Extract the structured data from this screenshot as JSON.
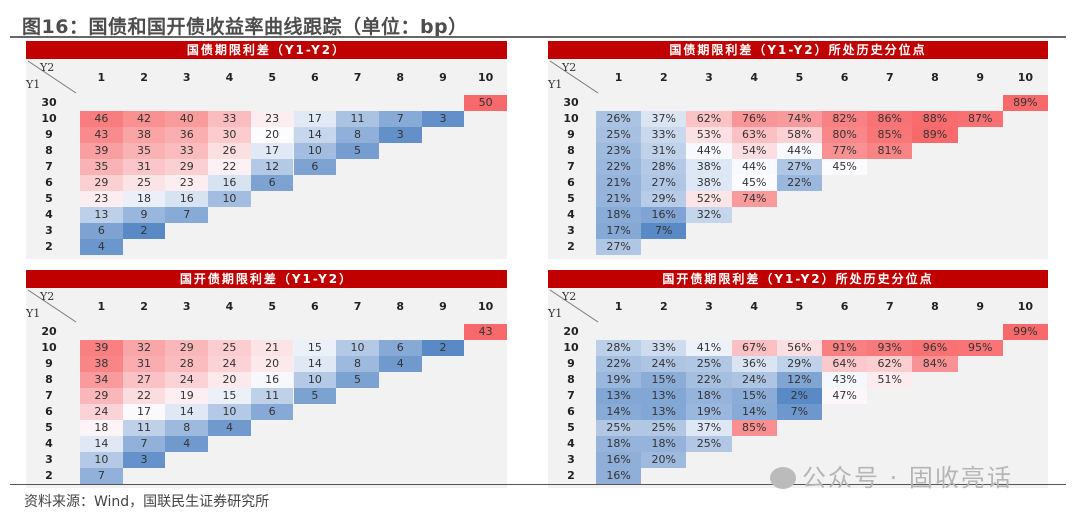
{
  "figure_title": "图16：国债和国开债收益率曲线跟踪（单位：bp）",
  "source": "资料来源：Wind，国联民生证券研究所",
  "watermark": "公众号 · 固收亮话",
  "colors": {
    "title_bar": "#c00000",
    "panel_bg": "#f2f2f2",
    "high": "#f8696b",
    "mid": "#fcfcff",
    "low": "#5a8ac6"
  },
  "chart_data": [
    {
      "type": "heatmap",
      "title": "国债期限利差（Y1-Y2）",
      "xlabel": "Y2",
      "ylabel": "Y1",
      "columns": [
        "1",
        "2",
        "3",
        "4",
        "5",
        "6",
        "7",
        "8",
        "9",
        "10"
      ],
      "rows": [
        "30",
        "10",
        "9",
        "8",
        "7",
        "6",
        "5",
        "4",
        "3",
        "2"
      ],
      "cells": [
        [
          null,
          null,
          null,
          null,
          null,
          null,
          null,
          null,
          null,
          "50"
        ],
        [
          "46",
          "42",
          "40",
          "33",
          "23",
          "17",
          "11",
          "7",
          "3",
          null
        ],
        [
          "43",
          "38",
          "36",
          "30",
          "20",
          "14",
          "8",
          "3",
          null,
          null
        ],
        [
          "39",
          "35",
          "33",
          "26",
          "17",
          "10",
          "5",
          null,
          null,
          null
        ],
        [
          "35",
          "31",
          "29",
          "22",
          "12",
          "6",
          null,
          null,
          null,
          null
        ],
        [
          "29",
          "25",
          "23",
          "16",
          "6",
          null,
          null,
          null,
          null,
          null
        ],
        [
          "23",
          "18",
          "16",
          "10",
          null,
          null,
          null,
          null,
          null,
          null
        ],
        [
          "13",
          "9",
          "7",
          null,
          null,
          null,
          null,
          null,
          null,
          null
        ],
        [
          "6",
          "2",
          null,
          null,
          null,
          null,
          null,
          null,
          null,
          null
        ],
        [
          "4",
          null,
          null,
          null,
          null,
          null,
          null,
          null,
          null,
          null
        ]
      ],
      "unit": "bp"
    },
    {
      "type": "heatmap",
      "title": "国债期限利差（Y1-Y2）所处历史分位点",
      "xlabel": "Y2",
      "ylabel": "Y1",
      "columns": [
        "1",
        "2",
        "3",
        "4",
        "5",
        "6",
        "7",
        "8",
        "9",
        "10"
      ],
      "rows": [
        "30",
        "10",
        "9",
        "8",
        "7",
        "6",
        "5",
        "4",
        "3",
        "2"
      ],
      "cells": [
        [
          null,
          null,
          null,
          null,
          null,
          null,
          null,
          null,
          null,
          "89%"
        ],
        [
          "26%",
          "37%",
          "62%",
          "76%",
          "74%",
          "82%",
          "86%",
          "88%",
          "87%",
          null
        ],
        [
          "25%",
          "33%",
          "53%",
          "63%",
          "58%",
          "80%",
          "85%",
          "89%",
          null,
          null
        ],
        [
          "23%",
          "31%",
          "44%",
          "54%",
          "44%",
          "77%",
          "81%",
          null,
          null,
          null
        ],
        [
          "22%",
          "28%",
          "38%",
          "44%",
          "27%",
          "45%",
          null,
          null,
          null,
          null
        ],
        [
          "21%",
          "27%",
          "38%",
          "45%",
          "22%",
          null,
          null,
          null,
          null,
          null
        ],
        [
          "21%",
          "29%",
          "52%",
          "74%",
          null,
          null,
          null,
          null,
          null,
          null
        ],
        [
          "18%",
          "16%",
          "32%",
          null,
          null,
          null,
          null,
          null,
          null,
          null
        ],
        [
          "17%",
          "7%",
          null,
          null,
          null,
          null,
          null,
          null,
          null,
          null
        ],
        [
          "27%",
          null,
          null,
          null,
          null,
          null,
          null,
          null,
          null,
          null
        ]
      ],
      "unit": "%"
    },
    {
      "type": "heatmap",
      "title": "国开债期限利差（Y1-Y2）",
      "xlabel": "Y2",
      "ylabel": "Y1",
      "columns": [
        "1",
        "2",
        "3",
        "4",
        "5",
        "6",
        "7",
        "8",
        "9",
        "10"
      ],
      "rows": [
        "20",
        "10",
        "9",
        "8",
        "7",
        "6",
        "5",
        "4",
        "3",
        "2"
      ],
      "cells": [
        [
          null,
          null,
          null,
          null,
          null,
          null,
          null,
          null,
          null,
          "43"
        ],
        [
          "39",
          "32",
          "29",
          "25",
          "21",
          "15",
          "10",
          "6",
          "2",
          null
        ],
        [
          "38",
          "31",
          "28",
          "24",
          "20",
          "14",
          "8",
          "4",
          null,
          null
        ],
        [
          "34",
          "27",
          "24",
          "20",
          "16",
          "10",
          "5",
          null,
          null,
          null
        ],
        [
          "29",
          "22",
          "19",
          "15",
          "11",
          "5",
          null,
          null,
          null,
          null
        ],
        [
          "24",
          "17",
          "14",
          "10",
          "6",
          null,
          null,
          null,
          null,
          null
        ],
        [
          "18",
          "11",
          "8",
          "4",
          null,
          null,
          null,
          null,
          null,
          null
        ],
        [
          "14",
          "7",
          "4",
          null,
          null,
          null,
          null,
          null,
          null,
          null
        ],
        [
          "10",
          "3",
          null,
          null,
          null,
          null,
          null,
          null,
          null,
          null
        ],
        [
          "7",
          null,
          null,
          null,
          null,
          null,
          null,
          null,
          null,
          null
        ]
      ],
      "unit": "bp"
    },
    {
      "type": "heatmap",
      "title": "国开债期限利差（Y1-Y2）所处历史分位点",
      "xlabel": "Y2",
      "ylabel": "Y1",
      "columns": [
        "1",
        "2",
        "3",
        "4",
        "5",
        "6",
        "7",
        "8",
        "9",
        "10"
      ],
      "rows": [
        "20",
        "10",
        "9",
        "8",
        "7",
        "6",
        "5",
        "4",
        "3",
        "2"
      ],
      "cells": [
        [
          null,
          null,
          null,
          null,
          null,
          null,
          null,
          null,
          null,
          "99%"
        ],
        [
          "28%",
          "33%",
          "41%",
          "67%",
          "56%",
          "91%",
          "93%",
          "96%",
          "95%",
          null
        ],
        [
          "22%",
          "24%",
          "25%",
          "36%",
          "29%",
          "64%",
          "62%",
          "84%",
          null,
          null
        ],
        [
          "19%",
          "15%",
          "22%",
          "24%",
          "12%",
          "43%",
          "51%",
          null,
          null,
          null
        ],
        [
          "13%",
          "13%",
          "18%",
          "15%",
          "2%",
          "47%",
          null,
          null,
          null,
          null
        ],
        [
          "14%",
          "13%",
          "19%",
          "14%",
          "7%",
          null,
          null,
          null,
          null,
          null
        ],
        [
          "25%",
          "25%",
          "37%",
          "85%",
          null,
          null,
          null,
          null,
          null,
          null
        ],
        [
          "18%",
          "18%",
          "25%",
          null,
          null,
          null,
          null,
          null,
          null,
          null
        ],
        [
          "16%",
          "20%",
          null,
          null,
          null,
          null,
          null,
          null,
          null,
          null
        ],
        [
          "16%",
          null,
          null,
          null,
          null,
          null,
          null,
          null,
          null,
          null
        ]
      ],
      "unit": "%"
    }
  ]
}
